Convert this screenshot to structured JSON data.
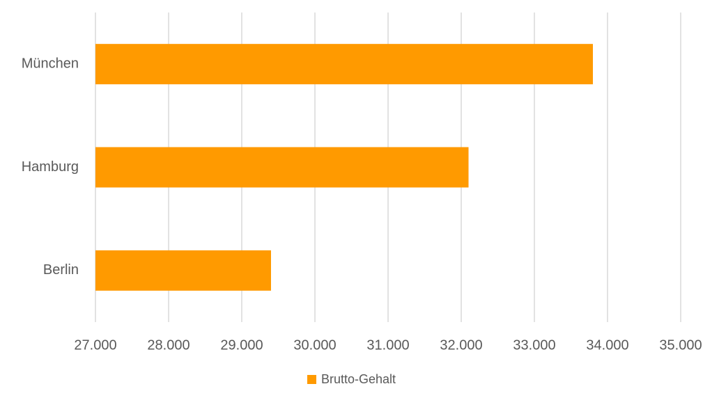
{
  "chart_data": {
    "type": "bar",
    "orientation": "horizontal",
    "categories": [
      "München",
      "Hamburg",
      "Berlin"
    ],
    "series": [
      {
        "name": "Brutto-Gehalt",
        "color": "#ff9a00",
        "values": [
          33800,
          32100,
          29400
        ]
      }
    ],
    "xlim": [
      27000,
      35000
    ],
    "xticks": [
      {
        "value": 27000,
        "label": "27.000"
      },
      {
        "value": 28000,
        "label": "28.000"
      },
      {
        "value": 29000,
        "label": "29.000"
      },
      {
        "value": 30000,
        "label": "30.000"
      },
      {
        "value": 31000,
        "label": "31.000"
      },
      {
        "value": 32000,
        "label": "32.000"
      },
      {
        "value": 33000,
        "label": "33.000"
      },
      {
        "value": 34000,
        "label": "34.000"
      },
      {
        "value": 35000,
        "label": "35.000"
      }
    ],
    "grid": true,
    "legend": "bottom"
  }
}
